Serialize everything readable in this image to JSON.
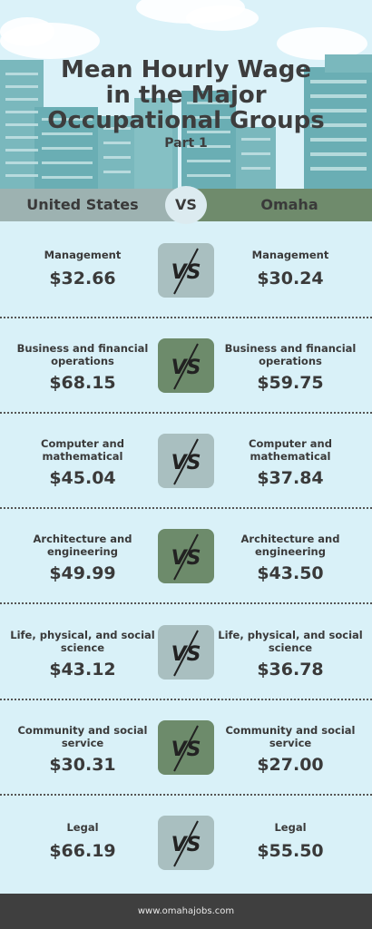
{
  "title": {
    "line1": "Mean Hourly Wage",
    "line2": "in the Major",
    "line3": "Occupational Groups",
    "subtitle": "Part 1"
  },
  "header": {
    "left": "United States",
    "vs": "VS",
    "right": "Omaha"
  },
  "badge_text": "VS",
  "rows": [
    {
      "left_label": "Management",
      "left_value": "$32.66",
      "right_label": "Management",
      "right_value": "$30.24"
    },
    {
      "left_label": "Business and financial operations",
      "left_value": "$68.15",
      "right_label": "Business and financial operations",
      "right_value": "$59.75"
    },
    {
      "left_label": "Computer and mathematical",
      "left_value": "$45.04",
      "right_label": "Computer and mathematical",
      "right_value": "$37.84"
    },
    {
      "left_label": "Architecture and engineering",
      "left_value": "$49.99",
      "right_label": "Architecture and engineering",
      "right_value": "$43.50"
    },
    {
      "left_label": "Life, physical, and social science",
      "left_value": "$43.12",
      "right_label": "Life, physical, and social science",
      "right_value": "$36.78"
    },
    {
      "left_label": "Community and social service",
      "left_value": "$30.31",
      "right_label": "Community and social service",
      "right_value": "$27.00"
    },
    {
      "left_label": "Legal",
      "left_value": "$66.19",
      "right_label": "Legal",
      "right_value": "$55.50"
    }
  ],
  "colors": {
    "background": "#d9f1f8",
    "us_header": "#9db2b1",
    "omaha_header": "#6f8b6c",
    "badge_light": "#a9bfc0",
    "badge_dark": "#6d8b6b",
    "footer": "#3f3f3f"
  },
  "footer": {
    "url": "www.omahajobs.com"
  }
}
